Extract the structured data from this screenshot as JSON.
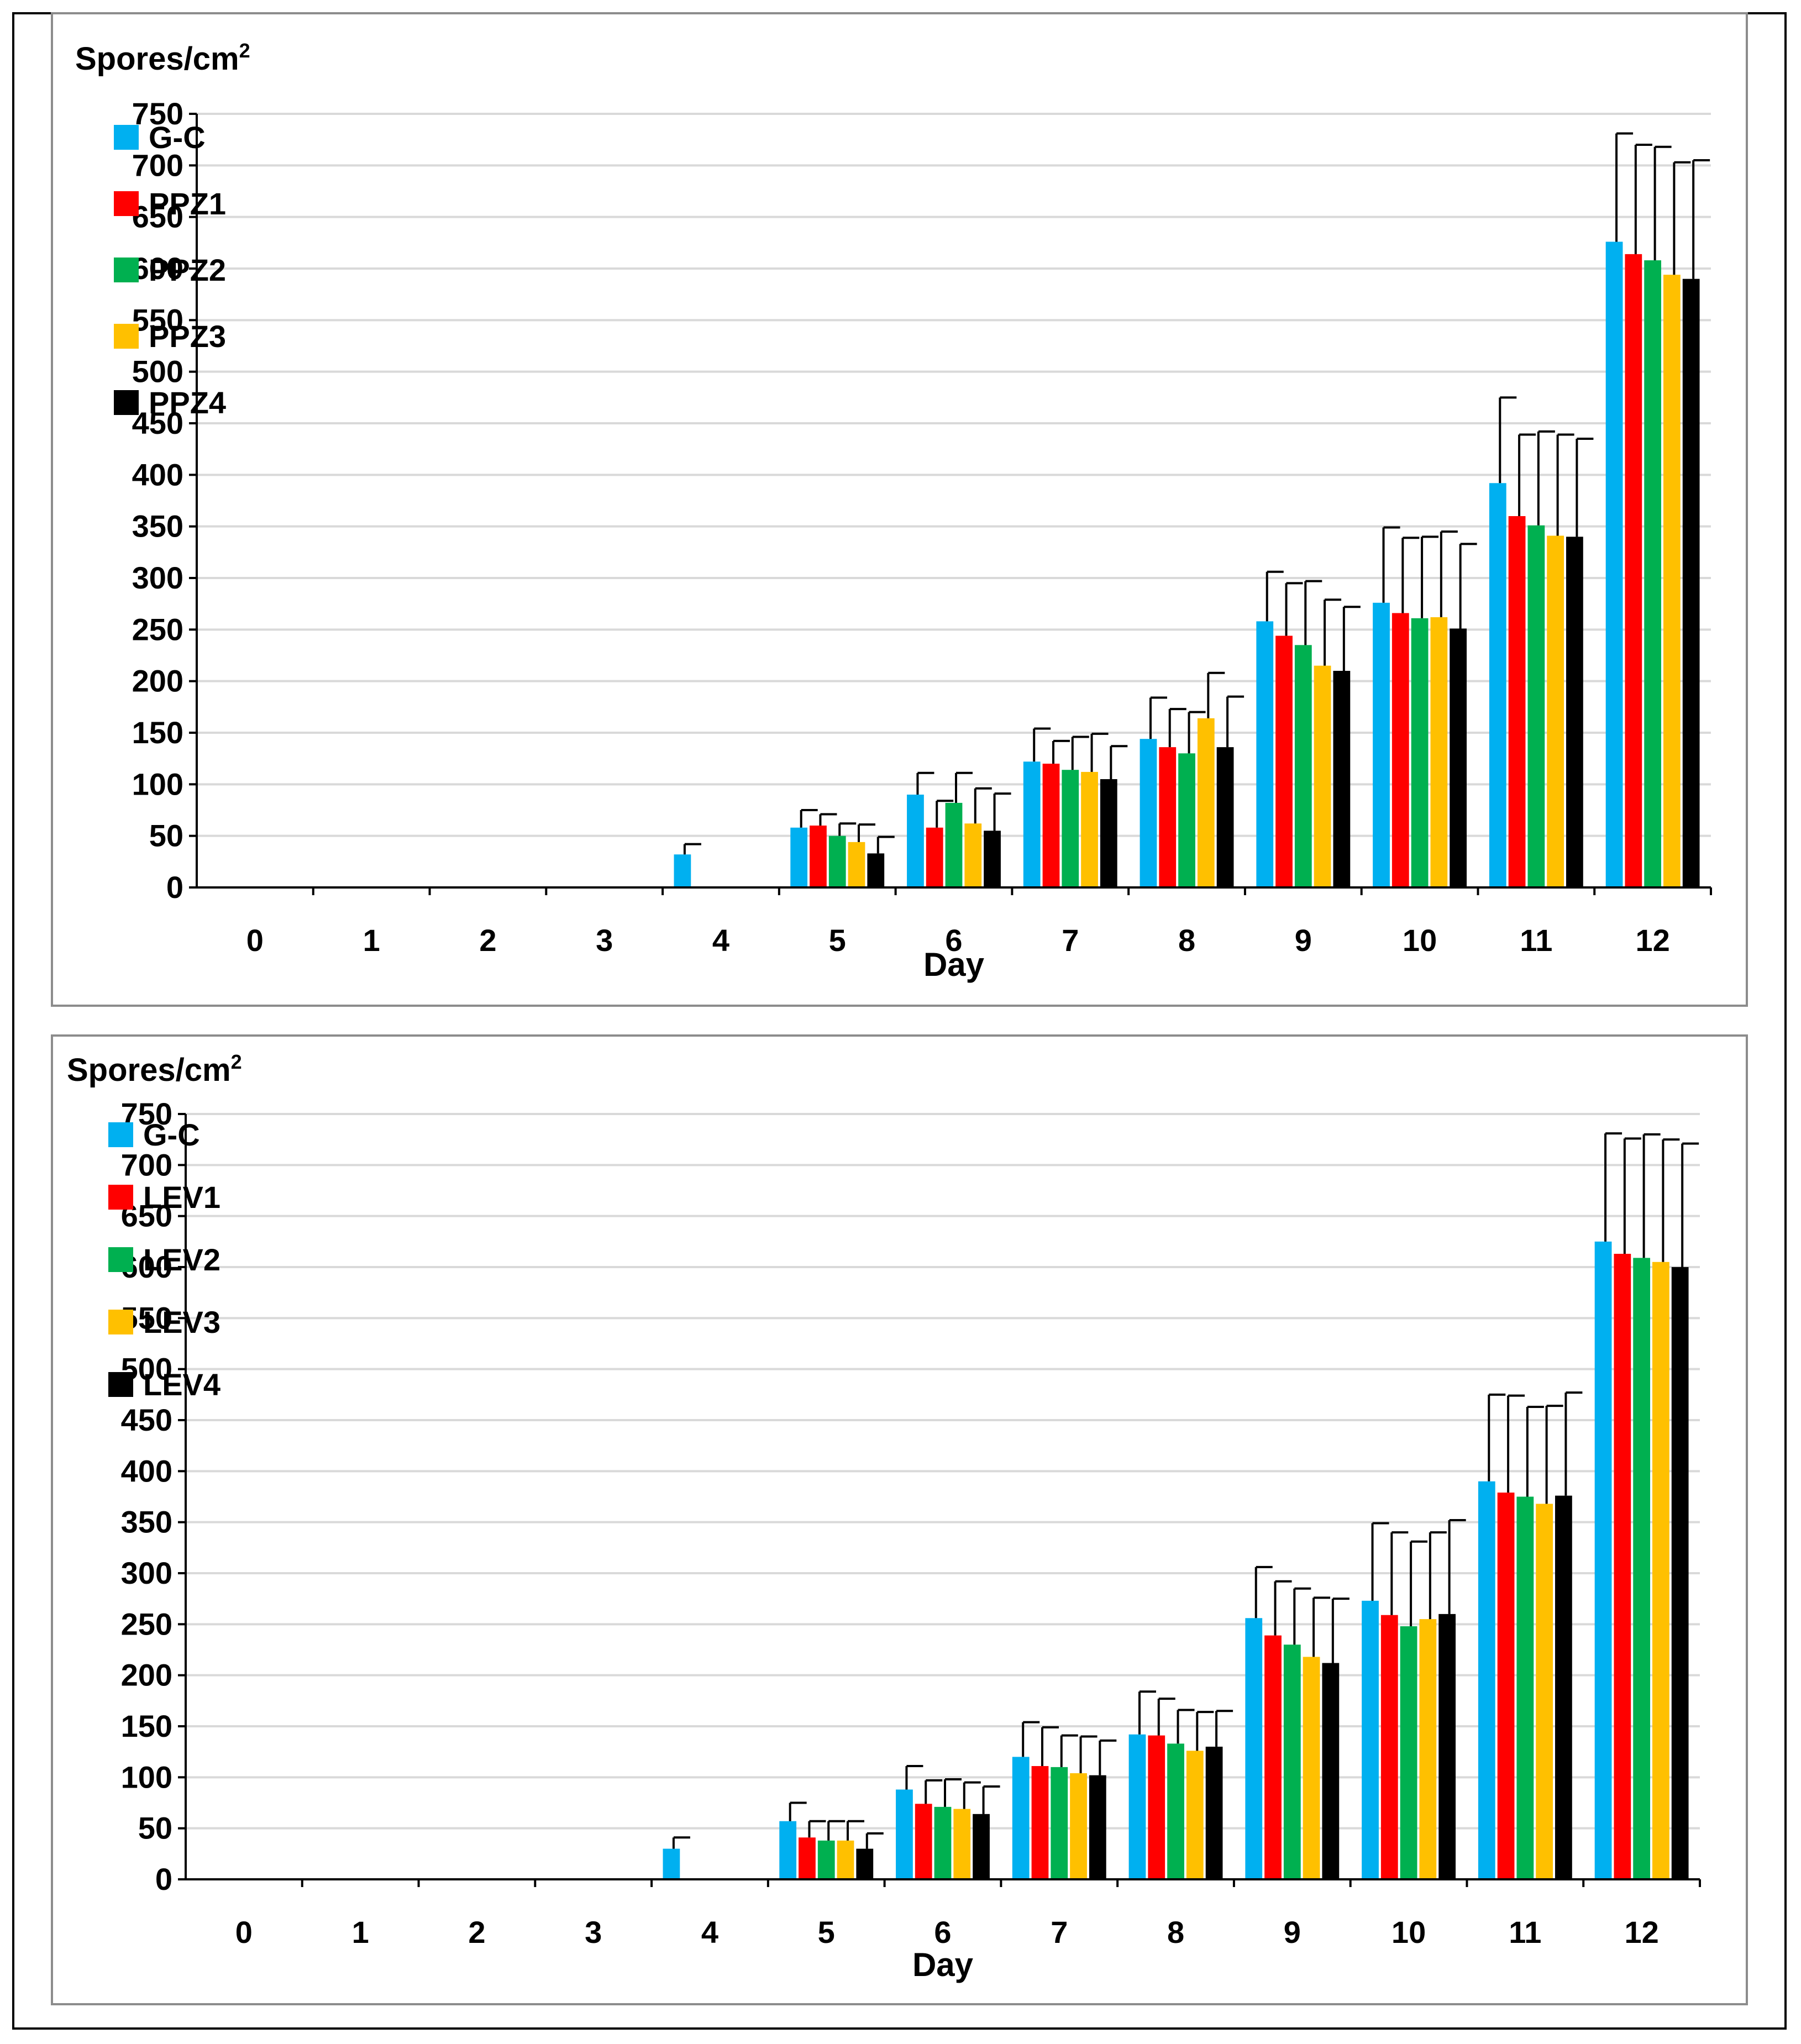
{
  "chart_data": [
    {
      "type": "bar",
      "ylabel": "Spores/cm",
      "ylabel_sup": "2",
      "xlabel": "Day",
      "ylim": [
        0,
        750
      ],
      "ytick_step": 50,
      "grid": true,
      "legend_position": "top-left",
      "categories": [
        "0",
        "1",
        "2",
        "3",
        "4",
        "5",
        "6",
        "7",
        "8",
        "9",
        "10",
        "11",
        "12"
      ],
      "series": [
        {
          "name": "G-C",
          "color": "#00B0F0",
          "values": [
            0,
            0,
            0,
            0,
            32,
            58,
            90,
            122,
            144,
            258,
            276,
            392,
            626
          ],
          "errors": [
            0,
            0,
            0,
            0,
            10,
            17,
            21,
            32,
            40,
            48,
            73,
            83,
            105
          ]
        },
        {
          "name": "PPZ1",
          "color": "#FF0000",
          "values": [
            0,
            0,
            0,
            0,
            0,
            60,
            58,
            120,
            136,
            244,
            266,
            360,
            614
          ],
          "errors": [
            0,
            0,
            0,
            0,
            0,
            11,
            26,
            22,
            37,
            51,
            73,
            79,
            106
          ]
        },
        {
          "name": "PPZ2",
          "color": "#00B050",
          "values": [
            0,
            0,
            0,
            0,
            0,
            50,
            82,
            114,
            130,
            235,
            261,
            351,
            608
          ],
          "errors": [
            0,
            0,
            0,
            0,
            0,
            12,
            29,
            32,
            40,
            62,
            79,
            91,
            110
          ]
        },
        {
          "name": "PPZ3",
          "color": "#FFC000",
          "values": [
            0,
            0,
            0,
            0,
            0,
            44,
            62,
            112,
            164,
            215,
            262,
            341,
            594
          ],
          "errors": [
            0,
            0,
            0,
            0,
            0,
            17,
            34,
            37,
            44,
            64,
            83,
            98,
            109
          ]
        },
        {
          "name": "PPZ4",
          "color": "#000000",
          "values": [
            0,
            0,
            0,
            0,
            0,
            33,
            55,
            105,
            136,
            210,
            251,
            340,
            590
          ],
          "errors": [
            0,
            0,
            0,
            0,
            0,
            16,
            36,
            32,
            49,
            62,
            82,
            95,
            115
          ]
        }
      ]
    },
    {
      "type": "bar",
      "ylabel": "Spores/cm",
      "ylabel_sup": "2",
      "xlabel": "Day",
      "ylim": [
        0,
        750
      ],
      "ytick_step": 50,
      "grid": true,
      "legend_position": "top-left",
      "categories": [
        "0",
        "1",
        "2",
        "3",
        "4",
        "5",
        "6",
        "7",
        "8",
        "9",
        "10",
        "11",
        "12"
      ],
      "series": [
        {
          "name": "G-C",
          "color": "#00B0F0",
          "values": [
            0,
            0,
            0,
            0,
            30,
            57,
            88,
            120,
            142,
            256,
            273,
            390,
            625
          ],
          "errors": [
            0,
            0,
            0,
            0,
            11,
            18,
            23,
            34,
            42,
            50,
            76,
            85,
            106
          ]
        },
        {
          "name": "LEV1",
          "color": "#FF0000",
          "values": [
            0,
            0,
            0,
            0,
            0,
            41,
            74,
            111,
            141,
            239,
            259,
            379,
            613
          ],
          "errors": [
            0,
            0,
            0,
            0,
            0,
            16,
            23,
            38,
            36,
            53,
            81,
            95,
            113
          ]
        },
        {
          "name": "LEV2",
          "color": "#00B050",
          "values": [
            0,
            0,
            0,
            0,
            0,
            38,
            71,
            110,
            133,
            230,
            248,
            375,
            609
          ],
          "errors": [
            0,
            0,
            0,
            0,
            0,
            19,
            27,
            31,
            33,
            55,
            83,
            88,
            121
          ]
        },
        {
          "name": "LEV3",
          "color": "#FFC000",
          "values": [
            0,
            0,
            0,
            0,
            0,
            38,
            69,
            104,
            126,
            218,
            255,
            368,
            605
          ],
          "errors": [
            0,
            0,
            0,
            0,
            0,
            19,
            26,
            36,
            38,
            58,
            85,
            96,
            120
          ]
        },
        {
          "name": "LEV4",
          "color": "#000000",
          "values": [
            0,
            0,
            0,
            0,
            0,
            30,
            64,
            102,
            130,
            212,
            260,
            376,
            600
          ],
          "errors": [
            0,
            0,
            0,
            0,
            0,
            15,
            27,
            34,
            35,
            63,
            92,
            101,
            121
          ]
        }
      ]
    }
  ]
}
